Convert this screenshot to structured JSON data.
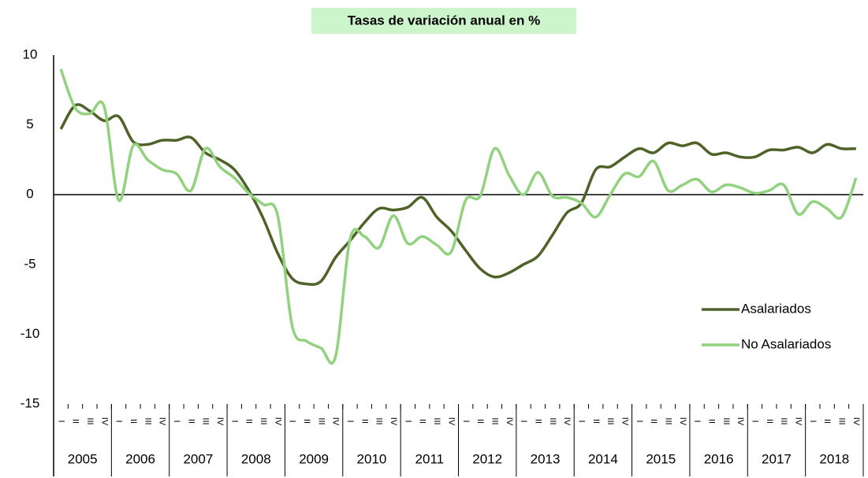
{
  "chart_data": {
    "type": "line",
    "title": "Tasas de variación anual en %",
    "categories": [
      "I",
      "II",
      "III",
      "IV",
      "I",
      "II",
      "III",
      "IV",
      "I",
      "II",
      "III",
      "IV",
      "I",
      "II",
      "III",
      "IV",
      "I",
      "II",
      "III",
      "IV",
      "I",
      "II",
      "III",
      "IV",
      "I",
      "II",
      "III",
      "IV",
      "I",
      "II",
      "III",
      "IV",
      "I",
      "II",
      "III",
      "IV",
      "I",
      "II",
      "III",
      "IV",
      "I",
      "II",
      "III",
      "IV",
      "I",
      "II",
      "III",
      "IV",
      "I",
      "II",
      "III",
      "IV",
      "I",
      "II",
      "III",
      "IV"
    ],
    "years": [
      "2005",
      "2006",
      "2007",
      "2008",
      "2009",
      "2010",
      "2011",
      "2012",
      "2013",
      "2014",
      "2015",
      "2016",
      "2017",
      "2018"
    ],
    "series": [
      {
        "name": "Asalariados",
        "color": "#4f6228",
        "values": [
          4.7,
          6.4,
          6.0,
          5.3,
          5.6,
          3.8,
          3.6,
          3.9,
          3.9,
          4.1,
          3.0,
          2.5,
          1.8,
          0.3,
          -1.7,
          -4.2,
          -6.0,
          -6.4,
          -6.2,
          -4.5,
          -3.3,
          -2.0,
          -1.0,
          -1.1,
          -0.9,
          -0.2,
          -1.6,
          -2.6,
          -4.0,
          -5.3,
          -5.9,
          -5.6,
          -5.0,
          -4.4,
          -2.9,
          -1.3,
          -0.6,
          1.8,
          2.0,
          2.7,
          3.3,
          3.0,
          3.7,
          3.5,
          3.7,
          2.9,
          3.0,
          2.7,
          2.7,
          3.2,
          3.2,
          3.4,
          3.0,
          3.6,
          3.3,
          3.3
        ]
      },
      {
        "name": "No Asalariados",
        "color": "#92d27f",
        "values": [
          9.0,
          6.2,
          5.8,
          6.3,
          -0.4,
          3.5,
          2.5,
          1.8,
          1.5,
          0.3,
          3.3,
          2.0,
          1.2,
          0.1,
          -0.7,
          -1.5,
          -9.4,
          -10.5,
          -11.0,
          -11.6,
          -3.2,
          -3.0,
          -3.8,
          -1.5,
          -3.5,
          -3.0,
          -3.6,
          -4.1,
          -0.4,
          -0.1,
          3.3,
          1.4,
          0.0,
          1.6,
          -0.1,
          -0.2,
          -0.6,
          -1.6,
          0.0,
          1.5,
          1.3,
          2.4,
          0.3,
          0.7,
          1.1,
          0.2,
          0.7,
          0.5,
          0.1,
          0.3,
          0.7,
          -1.4,
          -0.5,
          -1.0,
          -1.6,
          1.2
        ]
      }
    ],
    "ylim": [
      -15,
      10
    ],
    "yticks": [
      -15,
      -10,
      -5,
      0,
      5,
      10
    ],
    "negative_tick_color": "#ff0000",
    "grid": false
  }
}
